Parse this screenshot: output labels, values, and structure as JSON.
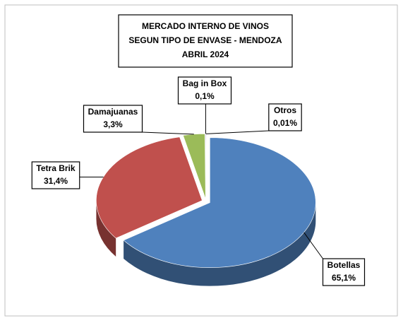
{
  "chart_data": {
    "type": "pie3d",
    "title": [
      "MERCADO INTERNO DE VINOS",
      "SEGUN TIPO DE ENVASE - MENDOZA",
      "ABRIL 2024"
    ],
    "categories": [
      "Botellas",
      "Tetra Brik",
      "Damajuanas",
      "Bag in Box",
      "Otros"
    ],
    "values": [
      65.1,
      31.4,
      3.3,
      0.1,
      0.01
    ],
    "value_labels": [
      "65,1%",
      "31,4%",
      "3,3%",
      "0,1%",
      "0,01%"
    ],
    "colors": [
      "#4f81bd",
      "#c0504d",
      "#9bbb59",
      "#8064a2",
      "#4bacc6"
    ]
  }
}
